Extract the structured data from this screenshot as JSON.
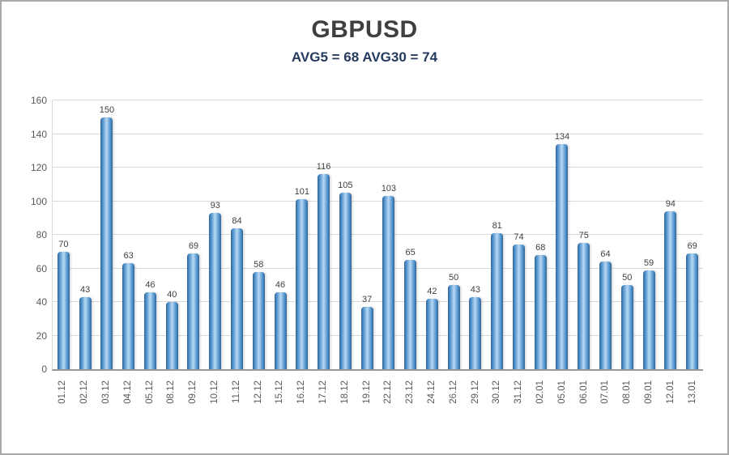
{
  "header": {
    "title": "GBPUSD",
    "subtitle": "AVG5 = 68 AVG30 = 74"
  },
  "chart_data": {
    "type": "bar",
    "title": "GBPUSD",
    "subtitle": "AVG5 = 68 AVG30 = 74",
    "categories": [
      "01.12",
      "02.12",
      "03.12",
      "04.12",
      "05.12",
      "08.12",
      "09.12",
      "10.12",
      "11.12",
      "12.12",
      "15.12",
      "16.12",
      "17.12",
      "18.12",
      "19.12",
      "22.12",
      "23.12",
      "24.12",
      "26.12",
      "29.12",
      "30.12",
      "31.12",
      "02.01",
      "05.01",
      "06.01",
      "07.01",
      "08.01",
      "09.01",
      "12.01",
      "13.01"
    ],
    "values": [
      70,
      43,
      150,
      63,
      46,
      40,
      69,
      93,
      84,
      58,
      46,
      101,
      116,
      105,
      37,
      103,
      65,
      42,
      50,
      43,
      81,
      74,
      68,
      134,
      75,
      64,
      50,
      59,
      94,
      69
    ],
    "xlabel": "",
    "ylabel": "",
    "ylim": [
      0,
      160
    ],
    "ytick_step": 20,
    "grid": true,
    "legend": "none",
    "bar_color_dark": "#2f6496",
    "bar_color_mid": "#5b9bd5",
    "bar_color_light": "#b9d9f1",
    "value_label_color": "#3f3f3f",
    "axis_label_color": "#595959",
    "gridline_color": "#d9d9d9"
  }
}
